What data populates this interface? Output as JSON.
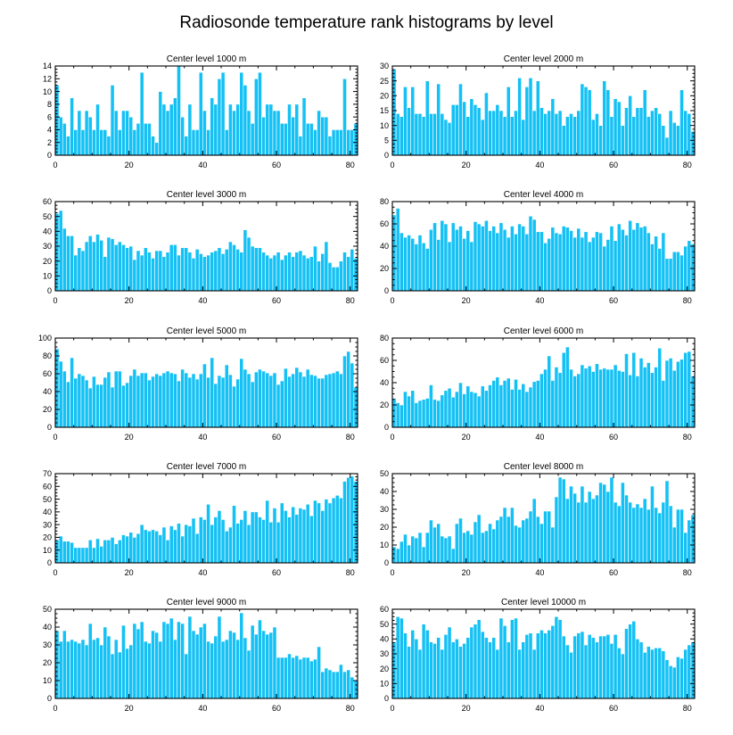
{
  "title": "Radiosonde temperature rank histograms by level",
  "bar_color": "#14c1f5",
  "chart_data": [
    {
      "type": "bar",
      "title": "Center level 1000 m",
      "x_start": 0,
      "xlim": [
        0,
        82
      ],
      "xticks": [
        0,
        20,
        40,
        60,
        80
      ],
      "ylim": [
        0,
        14
      ],
      "yticks": [
        0,
        2,
        4,
        6,
        8,
        10,
        12,
        14
      ],
      "values": [
        11,
        6,
        5,
        3,
        9,
        4,
        7,
        4,
        7,
        6,
        4,
        8,
        4,
        4,
        3,
        11,
        7,
        4,
        7,
        7,
        6,
        4,
        5,
        13,
        5,
        5,
        3,
        2,
        10,
        8,
        7,
        8,
        9,
        14,
        6,
        3,
        8,
        4,
        4,
        13,
        7,
        4,
        9,
        8,
        12,
        13,
        4,
        8,
        7,
        8,
        13,
        11,
        7,
        5,
        12,
        13,
        6,
        8,
        8,
        7,
        7,
        5,
        5,
        8,
        6,
        8,
        3,
        9,
        5,
        5,
        4,
        7,
        6,
        6,
        3,
        4,
        4,
        4,
        12,
        4,
        4,
        5
      ]
    },
    {
      "type": "bar",
      "title": "Center level 2000 m",
      "x_start": 0,
      "xlim": [
        0,
        82
      ],
      "xticks": [
        0,
        20,
        40,
        60,
        80
      ],
      "ylim": [
        0,
        30
      ],
      "yticks": [
        0,
        5,
        10,
        15,
        20,
        25,
        30
      ],
      "values": [
        29,
        14,
        13,
        23,
        16,
        23,
        14,
        14,
        13,
        25,
        14,
        14,
        24,
        14,
        12,
        11,
        17,
        17,
        24,
        18,
        13,
        19,
        17,
        16,
        12,
        21,
        15,
        15,
        17,
        15,
        13,
        23,
        13,
        15,
        26,
        12,
        23,
        26,
        15,
        25,
        16,
        14,
        15,
        19,
        14,
        15,
        10,
        13,
        14,
        13,
        15,
        24,
        23,
        22,
        12,
        14,
        10,
        25,
        22,
        13,
        19,
        18,
        10,
        16,
        20,
        13,
        16,
        16,
        22,
        13,
        15,
        16,
        14,
        10,
        6,
        15,
        11,
        10,
        22,
        15,
        14,
        8
      ]
    },
    {
      "type": "bar",
      "title": "Center level 3000 m",
      "x_start": 0,
      "xlim": [
        0,
        82
      ],
      "xticks": [
        0,
        20,
        40,
        60,
        80
      ],
      "ylim": [
        0,
        60
      ],
      "yticks": [
        0,
        10,
        20,
        30,
        40,
        50,
        60
      ],
      "values": [
        52,
        54,
        42,
        37,
        37,
        24,
        29,
        27,
        33,
        37,
        33,
        38,
        34,
        23,
        36,
        35,
        31,
        33,
        31,
        29,
        30,
        21,
        27,
        24,
        29,
        26,
        22,
        27,
        27,
        23,
        26,
        31,
        31,
        24,
        29,
        29,
        26,
        22,
        28,
        25,
        23,
        24,
        26,
        27,
        29,
        25,
        28,
        33,
        31,
        28,
        26,
        41,
        36,
        30,
        29,
        29,
        26,
        24,
        22,
        24,
        26,
        21,
        24,
        26,
        23,
        26,
        27,
        24,
        22,
        23,
        30,
        20,
        25,
        33,
        19,
        16,
        16,
        20,
        26,
        23,
        28,
        22
      ]
    },
    {
      "type": "bar",
      "title": "Center level 4000 m",
      "x_start": 0,
      "xlim": [
        0,
        82
      ],
      "xticks": [
        0,
        20,
        40,
        60,
        80
      ],
      "ylim": [
        0,
        80
      ],
      "yticks": [
        0,
        20,
        40,
        60,
        80
      ],
      "values": [
        68,
        74,
        52,
        48,
        50,
        47,
        42,
        50,
        43,
        38,
        55,
        61,
        46,
        63,
        60,
        44,
        61,
        55,
        58,
        47,
        54,
        44,
        62,
        60,
        58,
        63,
        54,
        58,
        52,
        61,
        55,
        48,
        58,
        51,
        60,
        58,
        51,
        67,
        64,
        53,
        53,
        43,
        47,
        57,
        52,
        51,
        58,
        57,
        54,
        48,
        56,
        48,
        53,
        44,
        48,
        53,
        52,
        40,
        46,
        58,
        45,
        60,
        55,
        50,
        63,
        55,
        61,
        57,
        58,
        52,
        42,
        49,
        38,
        52,
        29,
        29,
        35,
        35,
        32,
        40,
        45,
        42
      ]
    },
    {
      "type": "bar",
      "title": "Center level 5000 m",
      "x_start": 0,
      "xlim": [
        0,
        82
      ],
      "xticks": [
        0,
        20,
        40,
        60,
        80
      ],
      "ylim": [
        0,
        100
      ],
      "yticks": [
        0,
        20,
        40,
        60,
        80,
        100
      ],
      "values": [
        88,
        74,
        63,
        51,
        78,
        55,
        60,
        58,
        53,
        44,
        57,
        48,
        48,
        56,
        62,
        45,
        63,
        63,
        47,
        50,
        58,
        65,
        58,
        61,
        61,
        53,
        57,
        60,
        58,
        61,
        63,
        61,
        60,
        52,
        65,
        61,
        56,
        60,
        54,
        60,
        71,
        56,
        78,
        49,
        58,
        56,
        70,
        59,
        46,
        54,
        77,
        65,
        60,
        51,
        62,
        65,
        63,
        61,
        58,
        61,
        48,
        52,
        66,
        57,
        60,
        67,
        62,
        57,
        65,
        59,
        58,
        55,
        55,
        59,
        60,
        61,
        63,
        60,
        80,
        85,
        72,
        45
      ]
    },
    {
      "type": "bar",
      "title": "Center level 6000 m",
      "x_start": 0,
      "xlim": [
        0,
        82
      ],
      "xticks": [
        0,
        20,
        40,
        60,
        80
      ],
      "ylim": [
        0,
        80
      ],
      "yticks": [
        0,
        20,
        40,
        60,
        80
      ],
      "values": [
        26,
        22,
        20,
        32,
        28,
        33,
        22,
        24,
        25,
        26,
        38,
        25,
        24,
        29,
        33,
        35,
        27,
        32,
        40,
        30,
        37,
        32,
        31,
        28,
        37,
        33,
        38,
        42,
        45,
        38,
        42,
        44,
        34,
        43,
        34,
        39,
        32,
        36,
        41,
        42,
        48,
        52,
        64,
        42,
        54,
        49,
        67,
        72,
        52,
        46,
        48,
        56,
        53,
        55,
        50,
        57,
        52,
        53,
        52,
        52,
        56,
        51,
        50,
        66,
        47,
        67,
        46,
        62,
        54,
        58,
        49,
        54,
        71,
        42,
        60,
        62,
        51,
        59,
        61,
        67,
        68,
        46
      ]
    },
    {
      "type": "bar",
      "title": "Center level 7000 m",
      "x_start": 0,
      "xlim": [
        0,
        82
      ],
      "xticks": [
        0,
        20,
        40,
        60,
        80
      ],
      "ylim": [
        0,
        70
      ],
      "yticks": [
        0,
        10,
        20,
        30,
        40,
        50,
        60,
        70
      ],
      "values": [
        18,
        21,
        17,
        17,
        16,
        12,
        12,
        12,
        12,
        18,
        12,
        19,
        13,
        18,
        18,
        20,
        15,
        18,
        22,
        21,
        24,
        20,
        23,
        30,
        26,
        25,
        26,
        25,
        22,
        28,
        18,
        29,
        26,
        31,
        21,
        30,
        29,
        35,
        23,
        36,
        34,
        46,
        30,
        36,
        41,
        34,
        25,
        28,
        45,
        31,
        34,
        41,
        30,
        40,
        40,
        36,
        34,
        49,
        32,
        43,
        32,
        47,
        41,
        36,
        44,
        38,
        43,
        42,
        46,
        37,
        49,
        47,
        41,
        50,
        47,
        51,
        53,
        51,
        64,
        67,
        68,
        64
      ]
    },
    {
      "type": "bar",
      "title": "Center level 8000 m",
      "x_start": 0,
      "xlim": [
        0,
        82
      ],
      "xticks": [
        0,
        20,
        40,
        60,
        80
      ],
      "ylim": [
        0,
        50
      ],
      "yticks": [
        0,
        10,
        20,
        30,
        40,
        50
      ],
      "values": [
        9,
        8,
        12,
        16,
        10,
        15,
        14,
        17,
        9,
        17,
        24,
        20,
        22,
        15,
        14,
        15,
        8,
        22,
        25,
        17,
        18,
        16,
        23,
        27,
        17,
        18,
        22,
        19,
        24,
        26,
        31,
        26,
        31,
        21,
        20,
        24,
        25,
        29,
        36,
        26,
        22,
        29,
        29,
        20,
        37,
        48,
        47,
        36,
        43,
        39,
        34,
        43,
        34,
        40,
        36,
        38,
        45,
        44,
        40,
        48,
        34,
        32,
        45,
        38,
        34,
        31,
        33,
        31,
        36,
        30,
        43,
        31,
        28,
        34,
        46,
        32,
        20,
        30,
        30,
        17,
        24,
        27
      ]
    },
    {
      "type": "bar",
      "title": "Center level 9000 m",
      "x_start": 0,
      "xlim": [
        0,
        82
      ],
      "xticks": [
        0,
        20,
        40,
        60,
        80
      ],
      "ylim": [
        0,
        50
      ],
      "yticks": [
        0,
        10,
        20,
        30,
        40,
        50
      ],
      "values": [
        38,
        32,
        38,
        32,
        33,
        32,
        31,
        33,
        30,
        42,
        33,
        34,
        30,
        40,
        35,
        25,
        33,
        26,
        41,
        28,
        30,
        42,
        39,
        43,
        32,
        31,
        38,
        37,
        32,
        43,
        42,
        45,
        33,
        43,
        42,
        25,
        46,
        38,
        36,
        40,
        42,
        32,
        31,
        35,
        46,
        32,
        33,
        38,
        37,
        33,
        48,
        34,
        27,
        41,
        36,
        44,
        38,
        36,
        37,
        40,
        23,
        23,
        23,
        25,
        23,
        24,
        22,
        23,
        23,
        21,
        22,
        29,
        15,
        17,
        16,
        15,
        15,
        19,
        15,
        16,
        12,
        10
      ]
    },
    {
      "type": "bar",
      "title": "Center level 10000 m",
      "x_start": 0,
      "xlim": [
        0,
        82
      ],
      "xticks": [
        0,
        20,
        40,
        60,
        80
      ],
      "ylim": [
        0,
        60
      ],
      "yticks": [
        0,
        10,
        20,
        30,
        40,
        50,
        60
      ],
      "values": [
        38,
        55,
        54,
        44,
        35,
        46,
        40,
        33,
        50,
        46,
        38,
        37,
        41,
        33,
        43,
        48,
        38,
        40,
        35,
        37,
        41,
        48,
        50,
        53,
        45,
        41,
        38,
        41,
        33,
        54,
        49,
        38,
        53,
        54,
        33,
        38,
        43,
        44,
        33,
        44,
        46,
        44,
        46,
        49,
        55,
        53,
        42,
        36,
        31,
        42,
        44,
        45,
        36,
        43,
        41,
        38,
        42,
        42,
        43,
        37,
        43,
        34,
        30,
        47,
        50,
        52,
        40,
        38,
        31,
        35,
        33,
        34,
        34,
        32,
        26,
        22,
        21,
        28,
        27,
        33,
        36,
        38
      ]
    }
  ]
}
